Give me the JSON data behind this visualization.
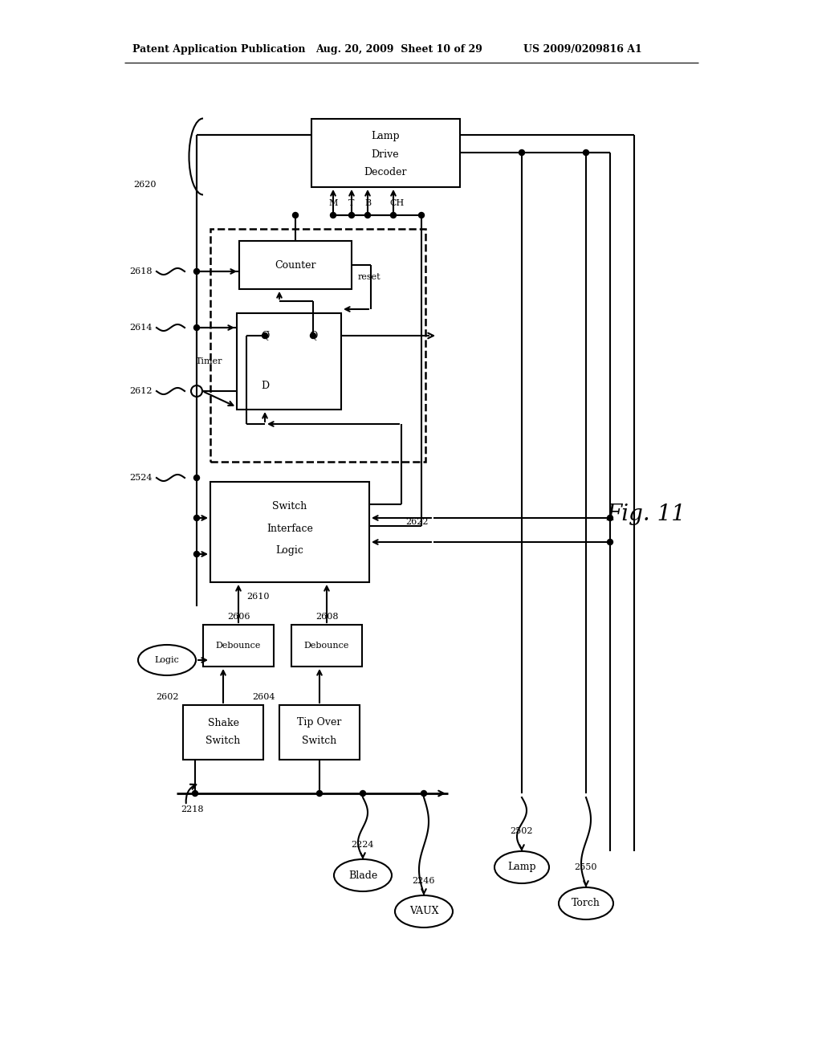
{
  "bg_color": "#ffffff",
  "header_left": "Patent Application Publication",
  "header_mid": "Aug. 20, 2009  Sheet 10 of 29",
  "header_right": "US 2009/0209816 A1",
  "fig_label": "Fig. 11",
  "ldd_label": [
    "Lamp",
    "Drive",
    "Decoder"
  ],
  "sil_label": [
    "Switch",
    "Interface",
    "Logic"
  ],
  "counter_label": "Counter",
  "timer_label": "Timer",
  "reset_label": "reset",
  "shake_label": [
    "Shake",
    "Switch"
  ],
  "tipover_label": [
    "Tip Over",
    "Switch"
  ],
  "deb1_label": "Debounce",
  "deb2_label": "Debounce",
  "logic_label": "Logic",
  "blade_label": "Blade",
  "vaux_label": "VAUX",
  "lamp_label": "Lamp",
  "torch_label": "Torch",
  "mtbch": [
    "M",
    "T",
    "B",
    "CH"
  ],
  "qbar_label": "Q̅",
  "q_label": "Q",
  "d_label": "D",
  "n2620": "2620",
  "n2618": "2618",
  "n2614": "2614",
  "n2612": "2612",
  "n2524": "2524",
  "n2622": "2622",
  "n2610": "2610",
  "n2606": "2606",
  "n2608": "2608",
  "n2602": "2602",
  "n2604": "2604",
  "n2218": "2218",
  "n2224": "2224",
  "n2246": "2246",
  "n2502": "2502",
  "n2550": "2550"
}
